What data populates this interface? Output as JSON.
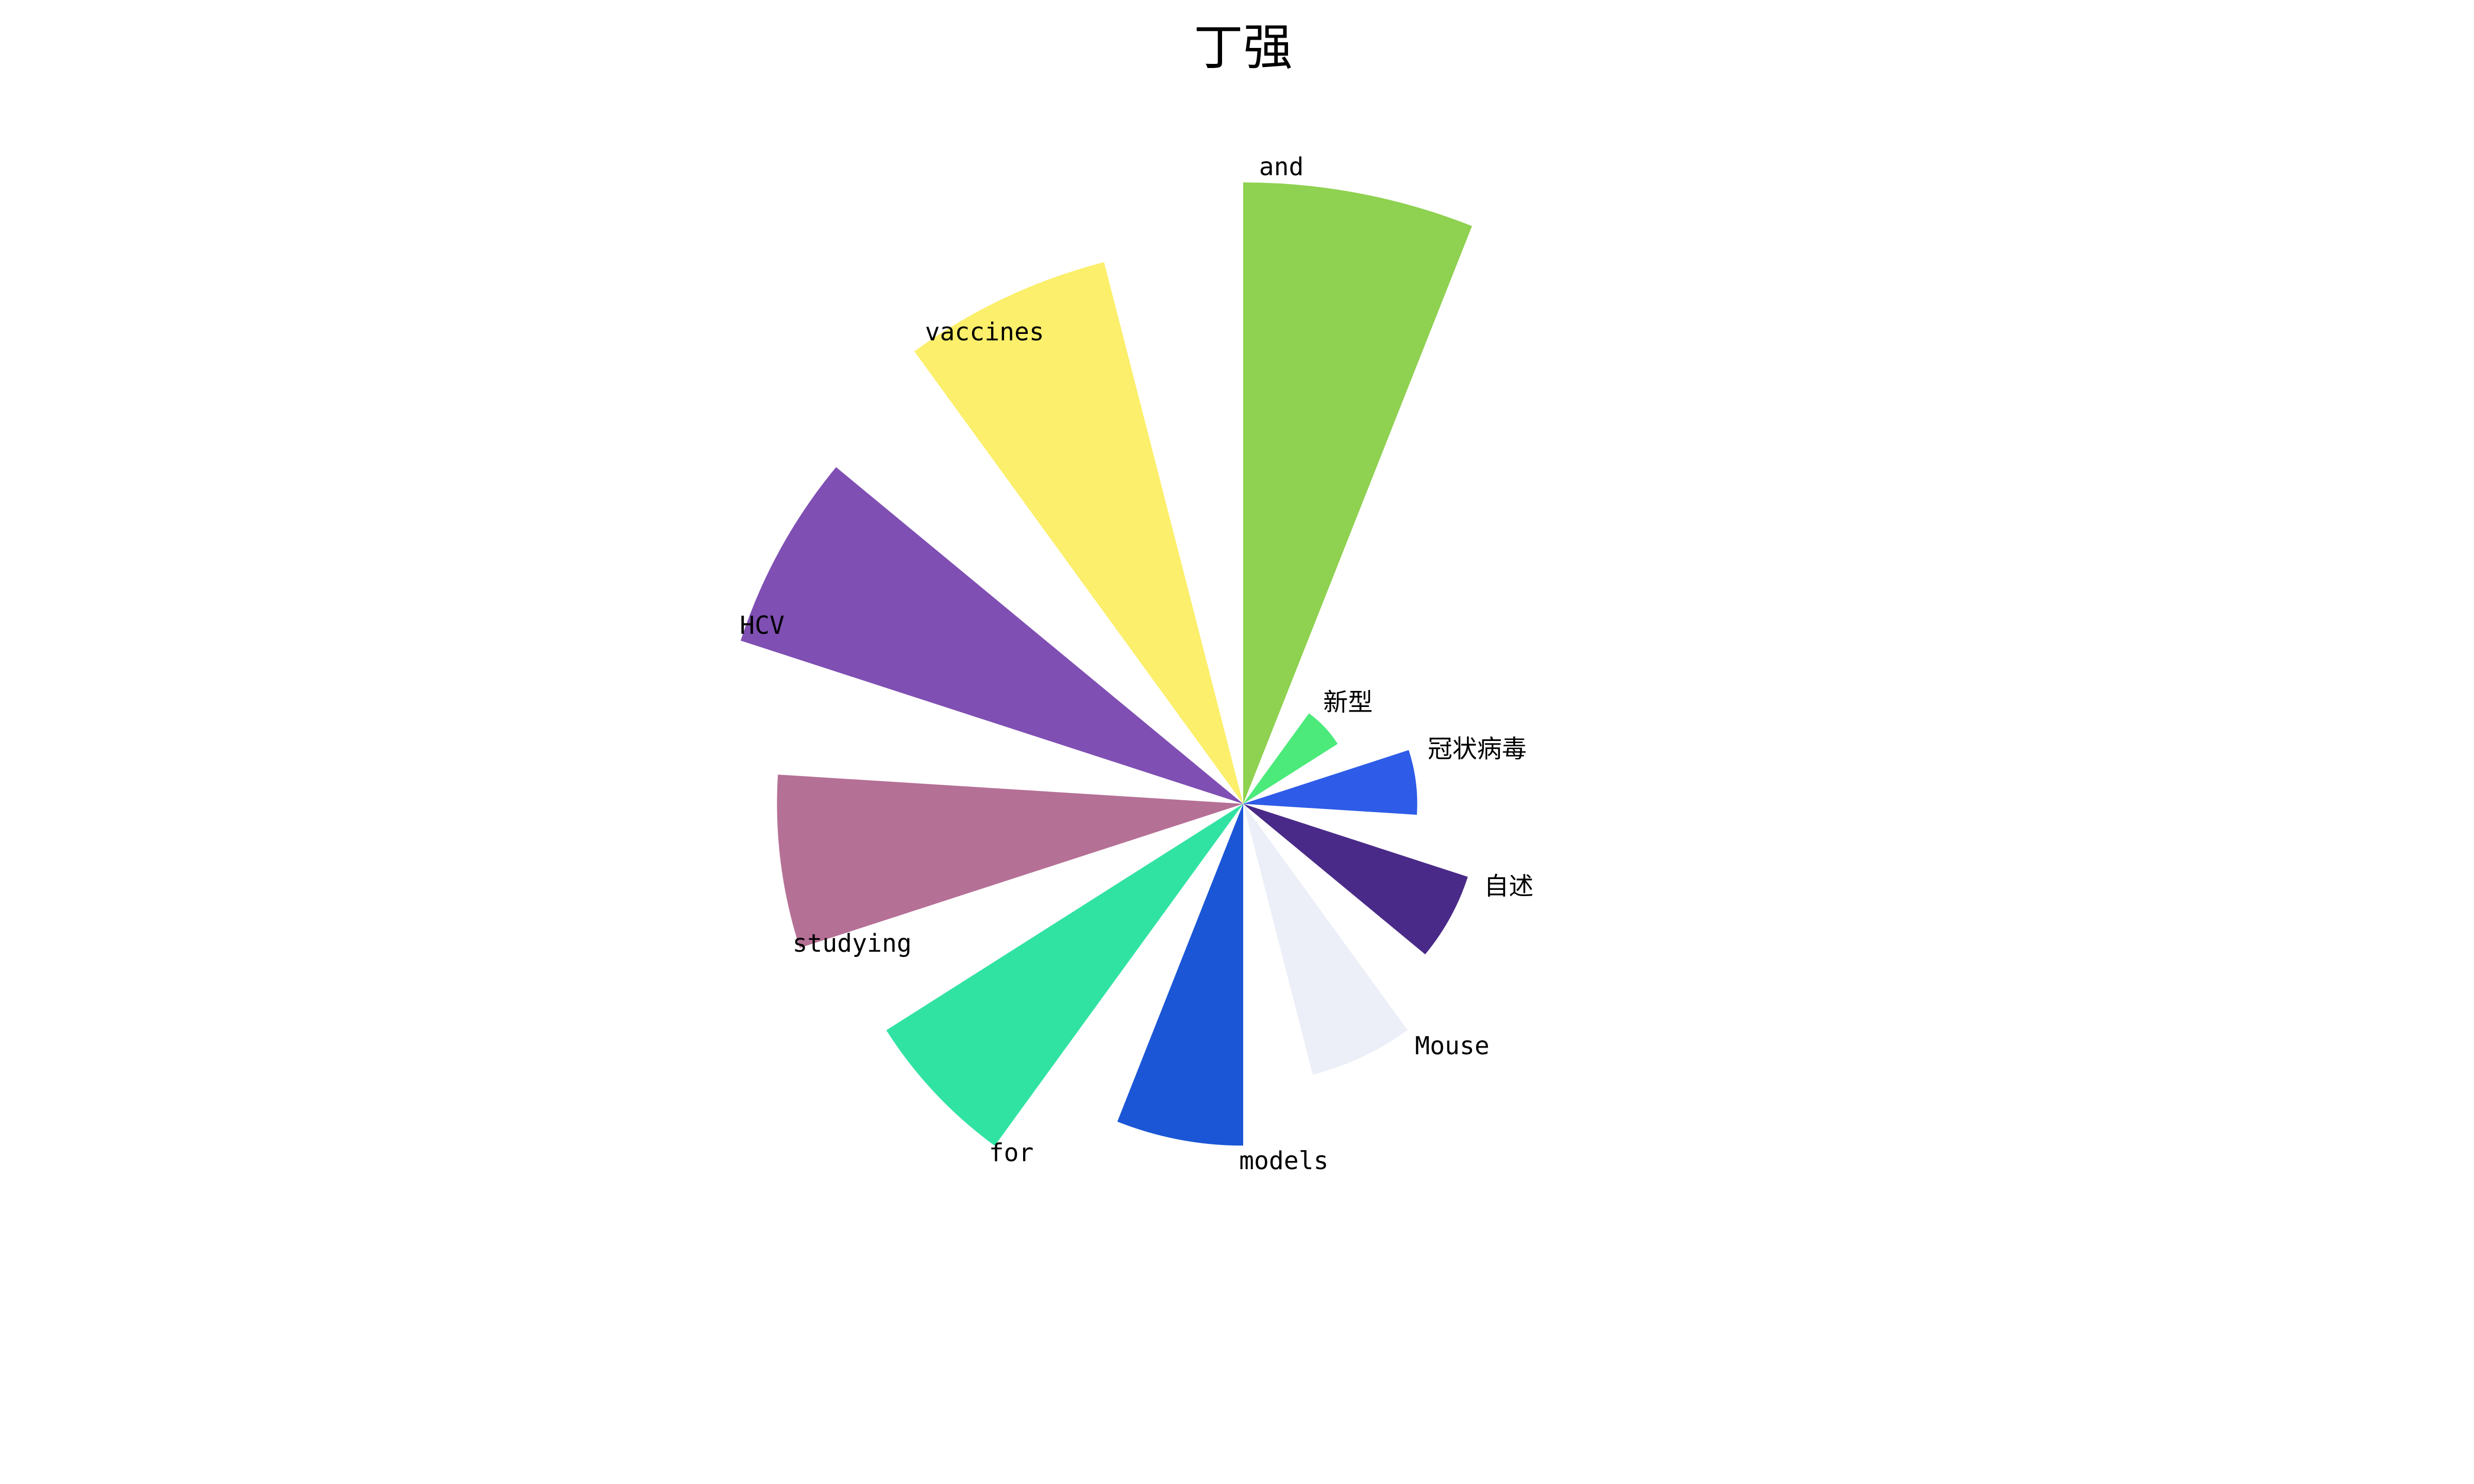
{
  "chart_data": {
    "type": "bar",
    "polar": true,
    "title": "丁强",
    "direction": "clockwise",
    "start_angle": "top",
    "categories": [
      "and",
      "新型",
      "冠状病毒",
      "自述",
      "Mouse",
      "models",
      "for",
      "studying",
      "HCV",
      "vaccines"
    ],
    "values": [
      100,
      18,
      28,
      38,
      45,
      55,
      68,
      75,
      85,
      90
    ],
    "colors": [
      "#8fd150",
      "#4bea7a",
      "#2e5ce8",
      "#4a2a88",
      "#eceff7",
      "#1a56d6",
      "#31e3a3",
      "#b57096",
      "#7f4fb3",
      "#fbef6b"
    ],
    "ylim": [
      0,
      100
    ],
    "grid": false,
    "legend": "none"
  }
}
